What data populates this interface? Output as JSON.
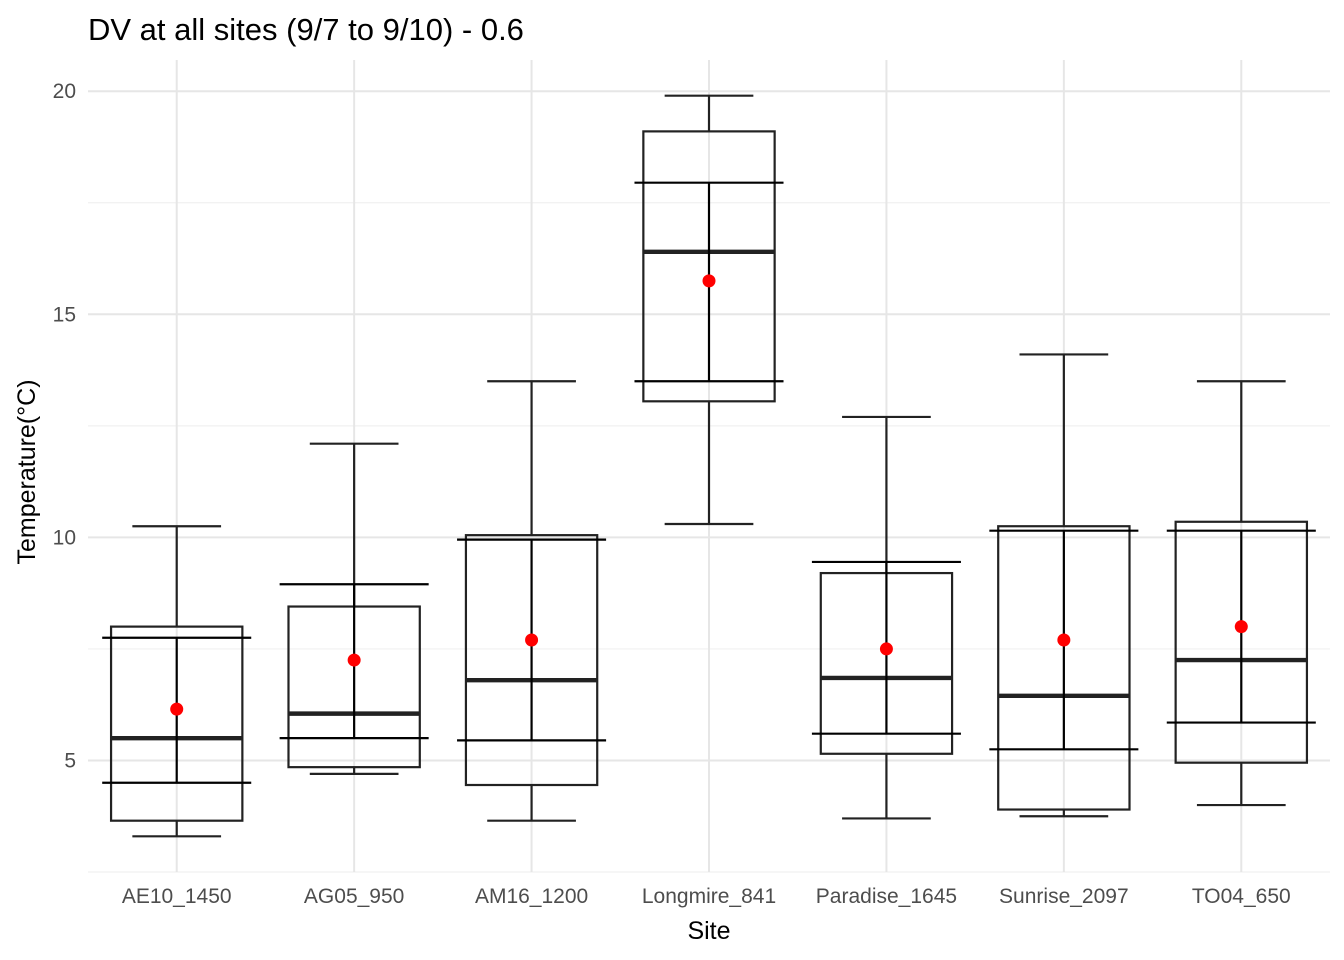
{
  "chart_data": {
    "type": "box",
    "title": "DV at all sites (9/7 to 9/10) - 0.6",
    "xlabel": "Site",
    "ylabel": "Temperature(°C)",
    "ylim": [
      2.5,
      20.7
    ],
    "yticks": [
      5,
      10,
      15,
      20
    ],
    "grid": true,
    "categories": [
      "AE10_1450",
      "AG05_950",
      "AM16_1200",
      "Longmire_841",
      "Paradise_1645",
      "Sunrise_2097",
      "TO04_650"
    ],
    "boxes": [
      {
        "whisker_low": 3.3,
        "q1": 3.65,
        "median": 5.5,
        "q3": 8.0,
        "whisker_high": 10.25,
        "mean": 6.15,
        "mean_minus_sd": 4.5,
        "mean_plus_sd": 7.75
      },
      {
        "whisker_low": 4.7,
        "q1": 4.85,
        "median": 6.05,
        "q3": 8.45,
        "whisker_high": 12.1,
        "mean": 7.25,
        "mean_minus_sd": 5.5,
        "mean_plus_sd": 8.95
      },
      {
        "whisker_low": 3.65,
        "q1": 4.45,
        "median": 6.8,
        "q3": 10.05,
        "whisker_high": 13.5,
        "mean": 7.7,
        "mean_minus_sd": 5.45,
        "mean_plus_sd": 9.95
      },
      {
        "whisker_low": 10.3,
        "q1": 13.05,
        "median": 16.4,
        "q3": 19.1,
        "whisker_high": 19.9,
        "mean": 15.75,
        "mean_minus_sd": 13.5,
        "mean_plus_sd": 17.95
      },
      {
        "whisker_low": 3.7,
        "q1": 5.15,
        "median": 6.85,
        "q3": 9.2,
        "whisker_high": 12.7,
        "mean": 7.5,
        "mean_minus_sd": 5.6,
        "mean_plus_sd": 9.45
      },
      {
        "whisker_low": 3.75,
        "q1": 3.9,
        "median": 6.45,
        "q3": 10.25,
        "whisker_high": 14.1,
        "mean": 7.7,
        "mean_minus_sd": 5.25,
        "mean_plus_sd": 10.15
      },
      {
        "whisker_low": 4.0,
        "q1": 4.95,
        "median": 7.25,
        "q3": 10.35,
        "whisker_high": 13.5,
        "mean": 8.0,
        "mean_minus_sd": 5.85,
        "mean_plus_sd": 10.15
      }
    ],
    "colors": {
      "box": "#222222",
      "mean": "#ff0000",
      "grid_major": "#e6e6e6",
      "grid_minor": "#f0f0f0"
    }
  }
}
